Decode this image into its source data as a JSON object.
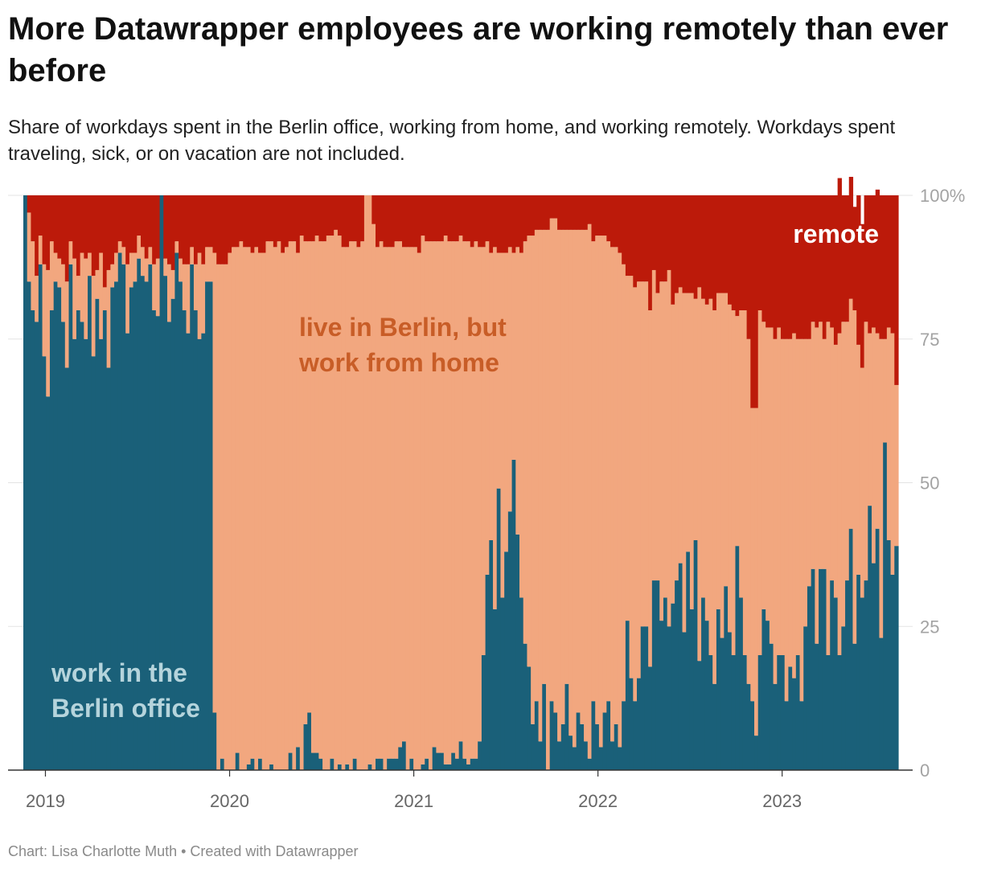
{
  "header": {
    "title": "More Datawrapper employees are working remotely than ever before",
    "subtitle": "Share of workdays spent in the Berlin office, working from home, and working remotely. Workdays spent traveling, sick, or on vacation are not included."
  },
  "footer": {
    "credit": "Chart: Lisa Charlotte Muth • Created with Datawrapper"
  },
  "chart_data": {
    "type": "area",
    "stacked": true,
    "bar_granularity": "weekly",
    "x_start": "2018-11",
    "x_end": "2023-08",
    "xlim": [
      2018.88,
      2023.63
    ],
    "ylim": [
      0,
      100
    ],
    "x_ticks": [
      {
        "value": 2019,
        "label": "2019"
      },
      {
        "value": 2020,
        "label": "2020"
      },
      {
        "value": 2021,
        "label": "2021"
      },
      {
        "value": 2022,
        "label": "2022"
      },
      {
        "value": 2023,
        "label": "2023"
      }
    ],
    "y_ticks": [
      {
        "value": 0,
        "label": "0"
      },
      {
        "value": 25,
        "label": "25"
      },
      {
        "value": 50,
        "label": "50"
      },
      {
        "value": 75,
        "label": "75"
      },
      {
        "value": 100,
        "label": "100%"
      }
    ],
    "grid": true,
    "legend": "inline labels",
    "series": [
      {
        "name": "work in the Berlin office",
        "color": "#1a6079",
        "label_color": "#b5d4dc",
        "values": [
          100,
          85,
          80,
          78,
          88,
          72,
          65,
          80,
          85,
          84,
          78,
          70,
          88,
          75,
          80,
          78,
          75,
          86,
          72,
          82,
          75,
          80,
          70,
          84,
          85,
          90,
          88,
          76,
          84,
          85,
          89,
          86,
          85,
          88,
          80,
          79,
          100,
          86,
          78,
          82,
          90,
          85,
          80,
          76,
          88,
          80,
          75,
          76,
          85,
          85,
          10,
          0,
          2,
          0,
          0,
          0,
          3,
          0,
          0,
          1,
          2,
          0,
          2,
          0,
          0,
          1,
          0,
          0,
          0,
          0,
          3,
          0,
          4,
          0,
          8,
          10,
          3,
          3,
          2,
          0,
          0,
          2,
          0,
          1,
          0,
          1,
          0,
          2,
          0,
          0,
          0,
          1,
          0,
          2,
          2,
          0,
          2,
          2,
          2,
          4,
          5,
          0,
          2,
          0,
          0,
          1,
          2,
          0,
          4,
          3,
          3,
          1,
          1,
          3,
          2,
          5,
          2,
          1,
          2,
          2,
          5,
          20,
          34,
          40,
          28,
          49,
          30,
          38,
          45,
          54,
          41,
          30,
          22,
          18,
          8,
          12,
          5,
          15,
          0,
          12,
          10,
          5,
          8,
          15,
          6,
          4,
          10,
          8,
          5,
          2,
          12,
          8,
          4,
          10,
          12,
          5,
          8,
          4,
          12,
          26,
          16,
          12,
          16,
          25,
          25,
          18,
          33,
          33,
          26,
          30,
          25,
          29,
          33,
          36,
          24,
          38,
          28,
          40,
          19,
          30,
          26,
          20,
          15,
          28,
          23,
          32,
          24,
          20,
          39,
          30,
          20,
          15,
          12,
          6,
          20,
          28,
          26,
          22,
          15,
          20,
          20,
          12,
          18,
          16,
          20,
          12,
          25,
          32,
          35,
          22,
          35,
          35,
          20,
          33,
          30,
          20,
          25,
          33,
          42,
          22,
          34,
          30,
          33,
          46,
          36,
          42,
          23,
          57,
          40,
          34,
          39
        ]
      },
      {
        "name": "live in Berlin, but work from home",
        "color": "#f2a77f",
        "label_color": "#c85d27",
        "values": [
          0,
          12,
          12,
          8,
          5,
          16,
          22,
          12,
          5,
          5,
          10,
          15,
          4,
          14,
          6,
          12,
          14,
          4,
          14,
          5,
          15,
          4,
          17,
          4,
          5,
          2,
          3,
          12,
          6,
          5,
          4,
          5,
          4,
          3,
          8,
          10,
          0,
          3,
          10,
          5,
          2,
          4,
          8,
          12,
          3,
          8,
          15,
          12,
          6,
          6,
          80,
          88,
          86,
          88,
          90,
          91,
          88,
          92,
          91,
          90,
          88,
          91,
          88,
          90,
          92,
          91,
          91,
          92,
          90,
          91,
          89,
          92,
          86,
          93,
          84,
          82,
          89,
          90,
          90,
          92,
          93,
          91,
          94,
          92,
          91,
          90,
          92,
          90,
          91,
          92,
          100,
          99,
          95,
          89,
          90,
          91,
          89,
          89,
          90,
          88,
          86,
          91,
          89,
          91,
          90,
          92,
          90,
          92,
          88,
          89,
          89,
          92,
          91,
          89,
          90,
          88,
          90,
          91,
          89,
          90,
          86,
          71,
          58,
          50,
          63,
          41,
          60,
          52,
          46,
          36,
          50,
          60,
          70,
          75,
          85,
          82,
          89,
          79,
          94,
          84,
          86,
          89,
          86,
          79,
          88,
          90,
          84,
          86,
          89,
          93,
          80,
          85,
          89,
          83,
          80,
          86,
          83,
          86,
          76,
          60,
          70,
          72,
          69,
          60,
          60,
          62,
          54,
          50,
          59,
          55,
          62,
          52,
          50,
          48,
          59,
          45,
          55,
          42,
          65,
          52,
          55,
          62,
          65,
          55,
          60,
          51,
          57,
          60,
          40,
          50,
          60,
          60,
          51,
          57,
          60,
          50,
          51,
          55,
          60,
          57,
          55,
          63,
          57,
          60,
          55,
          63,
          50,
          43,
          43,
          55,
          43,
          40,
          58,
          44,
          44,
          56,
          53,
          45,
          40,
          58,
          40,
          40,
          45,
          30,
          41,
          34,
          52,
          18,
          37,
          42,
          28
        ]
      },
      {
        "name": "remote",
        "color": "#bc1a0a",
        "label_color": "#ffffff",
        "values": [
          0,
          3,
          8,
          14,
          7,
          12,
          13,
          8,
          10,
          11,
          12,
          15,
          8,
          11,
          14,
          10,
          11,
          10,
          14,
          13,
          10,
          16,
          13,
          12,
          10,
          8,
          9,
          12,
          10,
          10,
          7,
          9,
          11,
          9,
          12,
          11,
          0,
          11,
          12,
          13,
          8,
          11,
          12,
          12,
          9,
          12,
          10,
          12,
          9,
          9,
          10,
          12,
          12,
          12,
          10,
          9,
          9,
          8,
          9,
          9,
          10,
          9,
          10,
          10,
          8,
          8,
          9,
          8,
          10,
          9,
          8,
          8,
          10,
          7,
          8,
          8,
          8,
          7,
          8,
          8,
          7,
          7,
          6,
          7,
          9,
          9,
          8,
          8,
          9,
          8,
          0,
          0,
          5,
          9,
          8,
          9,
          9,
          9,
          8,
          8,
          9,
          9,
          9,
          9,
          10,
          7,
          8,
          8,
          8,
          8,
          8,
          7,
          8,
          8,
          8,
          7,
          8,
          8,
          9,
          8,
          9,
          9,
          8,
          10,
          9,
          10,
          10,
          10,
          9,
          10,
          9,
          10,
          8,
          7,
          7,
          6,
          6,
          6,
          6,
          4,
          4,
          6,
          6,
          6,
          6,
          6,
          6,
          6,
          6,
          5,
          8,
          7,
          7,
          7,
          8,
          9,
          9,
          10,
          12,
          14,
          14,
          16,
          15,
          15,
          15,
          20,
          13,
          17,
          15,
          15,
          13,
          19,
          17,
          16,
          17,
          17,
          17,
          18,
          16,
          18,
          19,
          18,
          20,
          17,
          17,
          17,
          19,
          20,
          21,
          20,
          20,
          25,
          37,
          37,
          20,
          22,
          23,
          23,
          25,
          23,
          25,
          25,
          25,
          24,
          25,
          25,
          25,
          25,
          22,
          23,
          22,
          25,
          22,
          23,
          26,
          27,
          22,
          22,
          27,
          18,
          26,
          25,
          22,
          24,
          23,
          25,
          25,
          25,
          23,
          24,
          33
        ]
      }
    ],
    "annotations": [
      {
        "text": "work in the\nBerlin office",
        "series": "work in the Berlin office"
      },
      {
        "text": "live in Berlin, but\nwork from home",
        "series": "live in Berlin, but work from home"
      },
      {
        "text": "remote",
        "series": "remote"
      }
    ]
  }
}
